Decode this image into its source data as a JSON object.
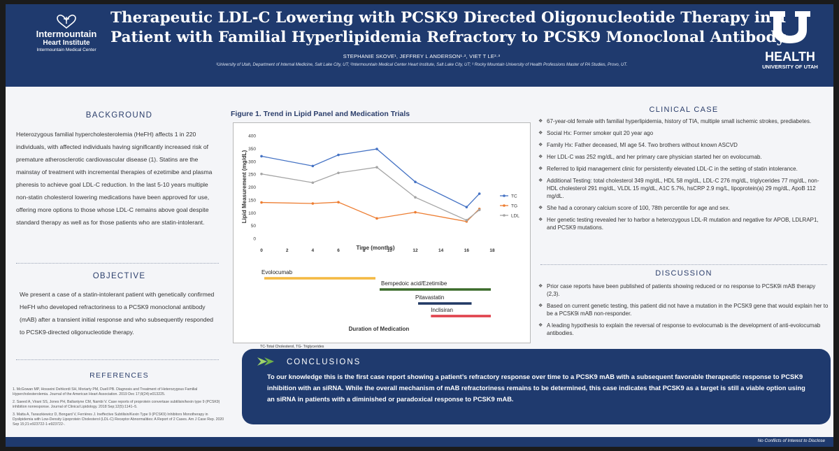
{
  "header": {
    "logo_left": {
      "line1": "Intermountain",
      "line2": "Heart Institute",
      "line3": "Intermountain Medical Center"
    },
    "title_line1": "Therapeutic LDL-C Lowering with PCSK9 Directed Oligonucleotide Therapy in a",
    "title_line2": "Patient with Familial Hyperlipidemia Refractory to PCSK9 Monoclonal Antibody",
    "authors": "STEPHANIE SKOVE¹, JEFFREY L ANDERSON¹·², VIET T LE²·³",
    "affiliations": "¹University of Utah, Department of Internal Medicine, Salt Lake City, UT; ²Intermountain Medical Center Heart Institute, Salt Lake City, UT; ³ Rocky Mountain University of Health Professions Master of PA Studies, Provo, UT.",
    "logo_right": {
      "line1": "HEALTH",
      "line2": "UNIVERSITY OF UTAH"
    }
  },
  "background": {
    "title": "BACKGROUND",
    "text": "Heterozygous familial hypercholesterolemia (HeFH) affects 1 in 220 individuals, with affected individuals having significantly increased risk of premature atherosclerotic cardiovascular disease (1). Statins are the mainstay of treatment with incremental therapies of ezetimibe and plasma pheresis to achieve goal LDL-C reduction. In the last 5-10 years multiple non-statin cholesterol lowering medications have been approved for use, offering more options to those whose LDL-C remains above goal despite standard therapy as well as for those patients who are statin-intolerant."
  },
  "objective": {
    "title": "OBJECTIVE",
    "text": "We present a case of a statin-intolerant patient with genetically confirmed HeFH who developed refractoriness to a PCSK9 monoclonal antibody (mAB) after a transient initial response and who subsequently responded to PCSK9-directed oligonucleotide therapy."
  },
  "references": {
    "title": "REFERENCES",
    "items": [
      "1. McGowan MP, Hosseini Dehkordi SH, Moriarty PM, Duell PB. Diagnosis and Treatment of Heterozygous Familial Hypercholesterolemia. Journal of the American Heart Association. 2019 Dec 17;8(24):e013225.",
      "2. Saeed A, Virani SS, Jones PH, Ballantyne CM, Nambi V. Case reports of proprotein convertase subtilisin/kexin type 9 (PCSK9) inhibition nonresponse. Journal of Clinical Lipidology. 2018 Sep;12(5):1141–5.",
      "3. Matta A, Taraszkiewicz D, Bongard V, Ferrières J. Ineffective Subtilisin/Kexin Type 9 (PCSK9) Inhibitors Monotherapy in Dyslipidemia with Low-Density Lipoprotein Cholesterol (LDL-C) Receptor Abnormalities: A Report of 2 Cases. Am J Case Rep. 2020 Sep 15;21:e923722-1-e923722-."
    ]
  },
  "figure": {
    "title": "Figure 1. Trend in Lipid Panel and Medication Trials",
    "footnote": "TC-Total Cholesterol, TG- Triglycerides",
    "medications_label": "Duration of Medication"
  },
  "chart_data": {
    "type": "line",
    "title": "",
    "xlabel": "Time (months)",
    "ylabel": "Lipid Measurement (mg/dL)",
    "xlim": [
      0,
      18
    ],
    "ylim": [
      0,
      400
    ],
    "xticks": [
      0,
      2,
      4,
      6,
      8,
      10,
      12,
      14,
      16,
      18
    ],
    "yticks": [
      0,
      50,
      100,
      150,
      200,
      250,
      300,
      350,
      400
    ],
    "grid": false,
    "legend_position": "right",
    "series": [
      {
        "name": "TC",
        "color": "#4472c4",
        "x": [
          0,
          4,
          6,
          9,
          12,
          16,
          17
        ],
        "y": [
          320,
          282,
          325,
          348,
          220,
          122,
          174
        ]
      },
      {
        "name": "TG",
        "color": "#ed7d31",
        "x": [
          0,
          4,
          6,
          9,
          12,
          16,
          17
        ],
        "y": [
          140,
          136,
          141,
          78,
          102,
          66,
          115
        ]
      },
      {
        "name": "LDL",
        "color": "#a5a5a5",
        "x": [
          0,
          4,
          6,
          9,
          12,
          16,
          17
        ],
        "y": [
          251,
          217,
          255,
          277,
          160,
          71,
          111
        ]
      }
    ],
    "medications": [
      {
        "name": "Evolocumab",
        "start": 0,
        "end": 9,
        "color": "#f4b942"
      },
      {
        "name": "Bempedoic acid/Ezetimibe",
        "start": 9,
        "end": 18,
        "color": "#3b6b2b"
      },
      {
        "name": "Pitavastatin",
        "start": 12,
        "end": 16.5,
        "color": "#203864"
      },
      {
        "name": "Inclisiran",
        "start": 13,
        "end": 18,
        "color": "#e0404a"
      }
    ]
  },
  "clinical_case": {
    "title": "CLINICAL CASE",
    "items": [
      "67-year-old female with familial hyperlipidemia, history of TIA, multiple small ischemic strokes, prediabetes.",
      "Social Hx: Former smoker quit 20 year ago",
      "Family Hx: Father deceased, MI age 54. Two brothers without known ASCVD",
      "Her LDL-C was 252 mg/dL, and her primary care physician started her on evolocumab.",
      "Referred to lipid management clinic for persistently elevated LDL-C in the setting of statin intolerance.",
      "Additional Testing: total cholesterol 349 mg/dL, HDL 58 mg/dL, LDL-C 276 mg/dL, triglycerides 77 mg/dL, non-HDL cholesterol 291 mg/dL, VLDL 15 mg/dL, A1C 5.7%, hsCRP 2.9 mg/L, lipoprotein(a) 29 mg/dL, ApoB 112 mg/dL.",
      "She had a coronary calcium score of 100, 78th percentile for age and sex.",
      "Her genetic testing revealed her to harbor a heterozygous LDL-R mutation and negative for APOB, LDLRAP1, and PCSK9 mutations."
    ]
  },
  "discussion": {
    "title": "DISCUSSION",
    "items": [
      "Prior case reports have been published of patients showing reduced or no response to PCSK9i mAB therapy (2,3).",
      "Based on current genetic testing, this patient did not have a mutation in the PCSK9 gene that would explain her to be a PCSK9i mAB non-responder.",
      "A leading hypothesis to explain the reversal of response to evolocumab is the development of anti-evolocumab antibodies."
    ]
  },
  "conclusions": {
    "title": "CONCLUSIONS",
    "text": "To our knowledge this is the first case report showing a patient’s refractory response over time to a PCSK9 mAB with a subsequent favorable therapeutic response to PCSK9 inhibition with an siRNA. While the overall mechanism of mAB refractoriness remains to be determined, this case indicates that PCSK9 as a target is still a viable option using an siRNA in patients with a diminished or paradoxical response to PCSK9 mAB."
  },
  "footer": {
    "text": "No Conflicts of Interest to Disclose"
  },
  "colors": {
    "navy": "#1f3a6e",
    "section_title": "#2b3e6b",
    "tc": "#4472c4",
    "tg": "#ed7d31",
    "ldl": "#a5a5a5"
  }
}
